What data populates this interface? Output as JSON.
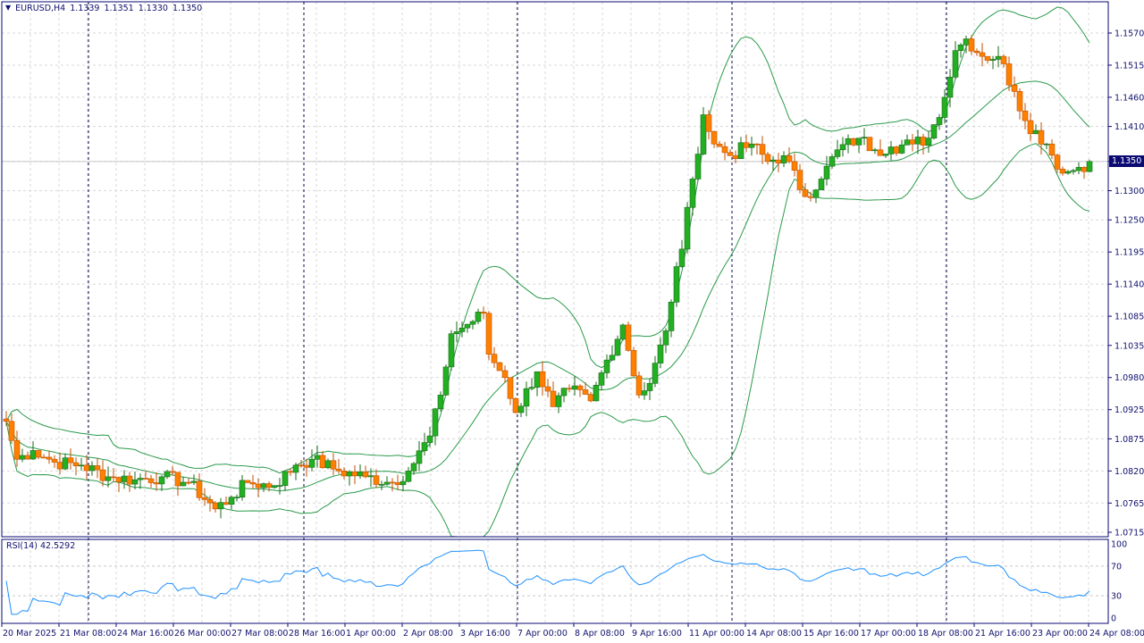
{
  "header": {
    "symbol": "EURUSD,H4",
    "open": "1.1339",
    "high": "1.1351",
    "low": "1.1330",
    "close": "1.1350"
  },
  "current_price": "1.1350",
  "rsi": {
    "label": "RSI(14) 42.5292",
    "levels": [
      "100",
      "70",
      "30",
      "0"
    ]
  },
  "colors": {
    "bull": "#22b022",
    "bear": "#ff8000",
    "bands": "#2a9a4a",
    "rsi": "#1e90ff",
    "axis": "#0a0a72",
    "grid": "#d8d8d8"
  },
  "chart_data": {
    "type": "candlestick",
    "title": "EURUSD,H4",
    "indicators": [
      "Bollinger Bands(20,2)",
      "RSI(14)"
    ],
    "ylim": [
      1.07,
      1.159
    ],
    "y_ticks": [
      "1.1570",
      "1.1515",
      "1.1460",
      "1.1410",
      "1.1350",
      "1.1300",
      "1.1250",
      "1.1195",
      "1.1140",
      "1.1085",
      "1.1035",
      "1.0980",
      "1.0925",
      "1.0875",
      "1.0820",
      "1.0765",
      "1.0715"
    ],
    "x_ticks": [
      "20 Mar 2025",
      "21 Mar 08:00",
      "24 Mar 16:00",
      "26 Mar 00:00",
      "27 Mar 08:00",
      "28 Mar 16:00",
      "1 Apr 00:00",
      "2 Apr 08:00",
      "3 Apr 16:00",
      "7 Apr 00:00",
      "8 Apr 08:00",
      "9 Apr 16:00",
      "11 Apr 00:00",
      "14 Apr 08:00",
      "15 Apr 16:00",
      "17 Apr 00:00",
      "18 Apr 08:00",
      "21 Apr 16:00",
      "23 Apr 00:00",
      "24 Apr 08:00"
    ],
    "candle_count": 203,
    "close_anchors": [
      [
        0,
        1.0905
      ],
      [
        2,
        1.084
      ],
      [
        5,
        1.0855
      ],
      [
        9,
        1.0835
      ],
      [
        14,
        1.083
      ],
      [
        19,
        1.081
      ],
      [
        24,
        1.0805
      ],
      [
        29,
        1.081
      ],
      [
        34,
        1.08
      ],
      [
        39,
        1.0755
      ],
      [
        42,
        1.0775
      ],
      [
        45,
        1.08
      ],
      [
        50,
        1.0795
      ],
      [
        54,
        1.083
      ],
      [
        57,
        1.084
      ],
      [
        62,
        1.082
      ],
      [
        67,
        1.081
      ],
      [
        72,
        1.08
      ],
      [
        75,
        1.082
      ],
      [
        79,
        1.088
      ],
      [
        81,
        1.095
      ],
      [
        83,
        1.1055
      ],
      [
        85,
        1.1065
      ],
      [
        89,
        1.109
      ],
      [
        90,
        1.102
      ],
      [
        93,
        1.098
      ],
      [
        95,
        1.092
      ],
      [
        99,
        1.099
      ],
      [
        102,
        1.093
      ],
      [
        105,
        1.096
      ],
      [
        109,
        1.094
      ],
      [
        112,
        1.101
      ],
      [
        115,
        1.107
      ],
      [
        118,
        1.095
      ],
      [
        120,
        1.097
      ],
      [
        123,
        1.106
      ],
      [
        125,
        1.117
      ],
      [
        126,
        1.12
      ],
      [
        128,
        1.132
      ],
      [
        130,
        1.143
      ],
      [
        132,
        1.138
      ],
      [
        135,
        1.136
      ],
      [
        139,
        1.138
      ],
      [
        142,
        1.135
      ],
      [
        145,
        1.136
      ],
      [
        149,
        1.129
      ],
      [
        152,
        1.132
      ],
      [
        155,
        1.137
      ],
      [
        159,
        1.139
      ],
      [
        162,
        1.137
      ],
      [
        165,
        1.1375
      ],
      [
        169,
        1.138
      ],
      [
        172,
        1.139
      ],
      [
        175,
        1.146
      ],
      [
        177,
        1.154
      ],
      [
        179,
        1.156
      ],
      [
        182,
        1.153
      ],
      [
        185,
        1.153
      ],
      [
        188,
        1.147
      ],
      [
        190,
        1.142
      ],
      [
        194,
        1.138
      ],
      [
        197,
        1.133
      ],
      [
        200,
        1.134
      ],
      [
        202,
        1.135
      ]
    ]
  }
}
